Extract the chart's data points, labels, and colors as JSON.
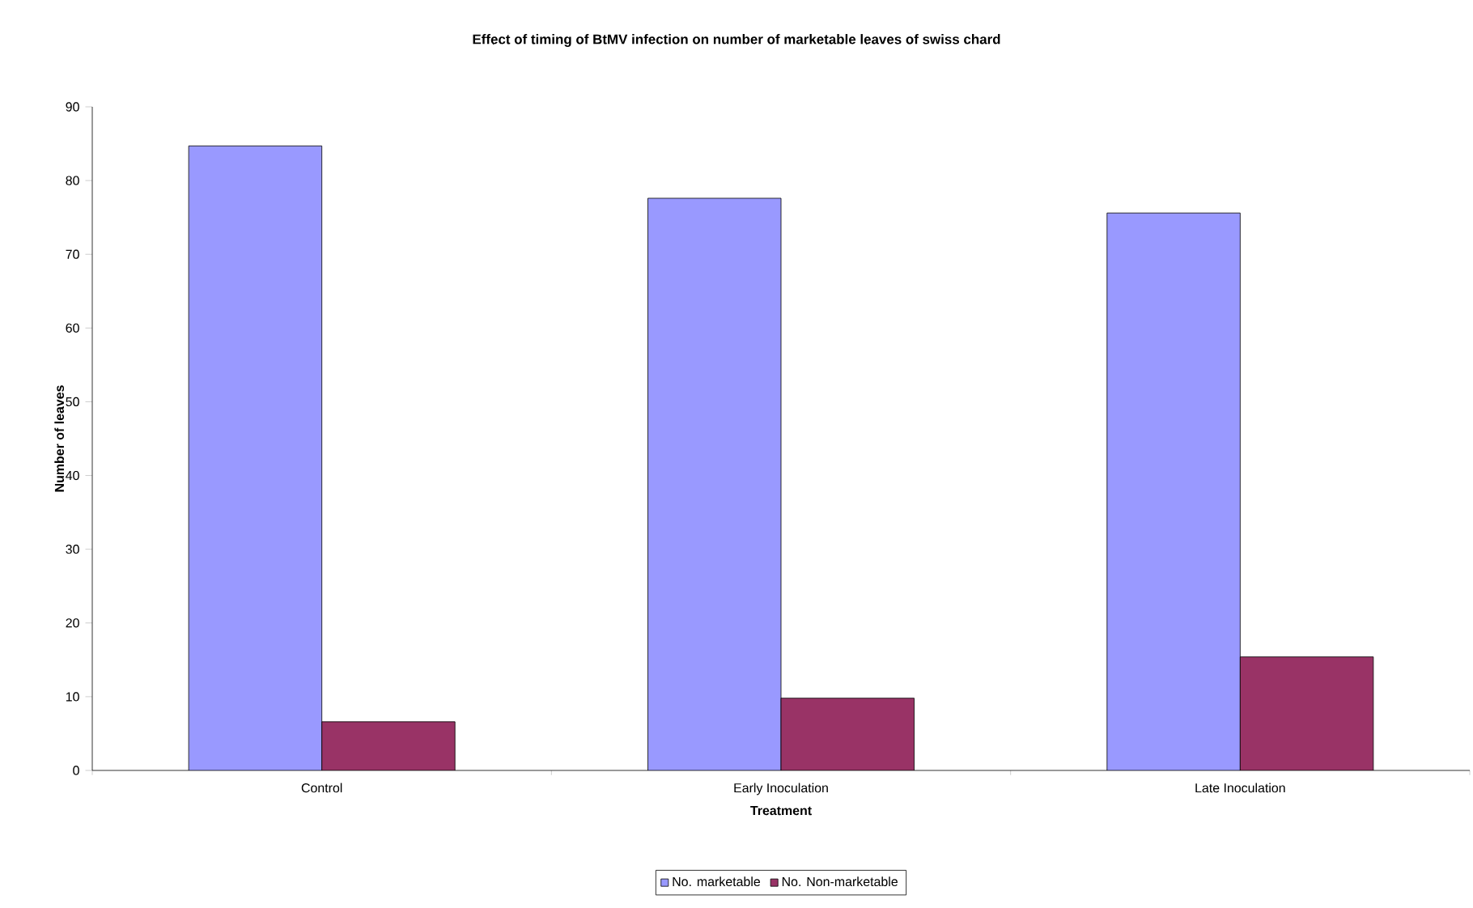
{
  "chart_data": {
    "type": "bar",
    "title": "Effect of timing of BtMV infection on number of marketable leaves of swiss chard",
    "xlabel": "Treatment",
    "ylabel": "Number of leaves",
    "categories": [
      "Control",
      "Early Inoculation",
      "Late Inoculation"
    ],
    "series": [
      {
        "name": "No. marketable",
        "color": "#9999ff",
        "values": [
          84.7,
          77.6,
          75.6
        ]
      },
      {
        "name": "No. Non-marketable",
        "color": "#993366",
        "values": [
          6.6,
          9.8,
          15.4
        ]
      }
    ],
    "ylim": [
      0,
      90
    ],
    "yticks": [
      0,
      10,
      20,
      30,
      40,
      50,
      60,
      70,
      80,
      90
    ],
    "legend": "bottom"
  }
}
